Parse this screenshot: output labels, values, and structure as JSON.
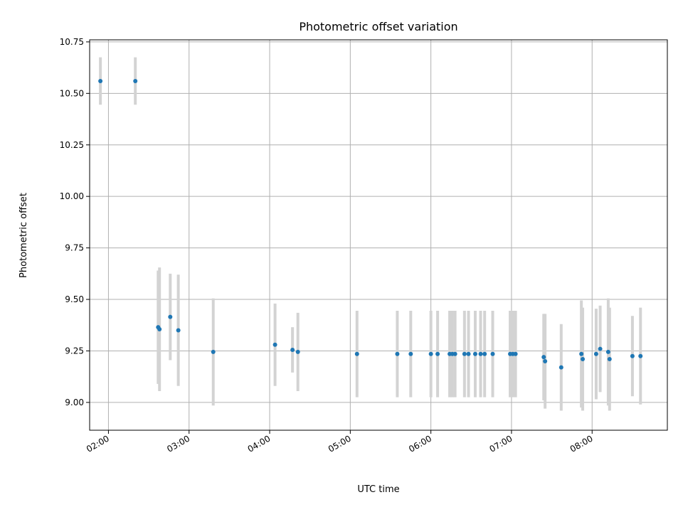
{
  "chart_data": {
    "type": "scatter",
    "title": "Photometric offset variation",
    "xlabel": "UTC time",
    "ylabel": "Photometric offset",
    "x_is_time": true,
    "xlim": [
      "01:46",
      "08:56"
    ],
    "ylim": [
      8.865,
      10.76
    ],
    "x_ticks": [
      "02:00",
      "03:00",
      "04:00",
      "05:00",
      "06:00",
      "07:00",
      "08:00"
    ],
    "y_ticks": [
      9.0,
      9.25,
      9.5,
      9.75,
      10.0,
      10.25,
      10.5,
      10.75
    ],
    "y_tick_labels": [
      "9.00",
      "9.25",
      "9.50",
      "9.75",
      "10.00",
      "10.25",
      "10.50",
      "10.75"
    ],
    "grid": true,
    "errorbar_color": "#d3d3d3",
    "point_color": "#1f77b4",
    "points": [
      {
        "x": "01:54",
        "y": 10.56,
        "err": 0.115
      },
      {
        "x": "02:20",
        "y": 10.56,
        "err": 0.115
      },
      {
        "x": "02:37",
        "y": 9.365,
        "err": 0.275
      },
      {
        "x": "02:38",
        "y": 9.355,
        "err": 0.3
      },
      {
        "x": "02:46",
        "y": 9.415,
        "err": 0.21
      },
      {
        "x": "02:52",
        "y": 9.35,
        "err": 0.27
      },
      {
        "x": "03:18",
        "y": 9.245,
        "err": 0.26
      },
      {
        "x": "04:04",
        "y": 9.28,
        "err": 0.2
      },
      {
        "x": "04:17",
        "y": 9.255,
        "err": 0.11
      },
      {
        "x": "04:21",
        "y": 9.245,
        "err": 0.19
      },
      {
        "x": "05:05",
        "y": 9.235,
        "err": 0.21
      },
      {
        "x": "05:35",
        "y": 9.235,
        "err": 0.21
      },
      {
        "x": "05:45",
        "y": 9.235,
        "err": 0.21
      },
      {
        "x": "06:00",
        "y": 9.235,
        "err": 0.21
      },
      {
        "x": "06:05",
        "y": 9.235,
        "err": 0.21
      },
      {
        "x": "06:14",
        "y": 9.235,
        "err": 0.21
      },
      {
        "x": "06:16",
        "y": 9.235,
        "err": 0.21
      },
      {
        "x": "06:18",
        "y": 9.235,
        "err": 0.21
      },
      {
        "x": "06:25",
        "y": 9.235,
        "err": 0.21
      },
      {
        "x": "06:28",
        "y": 9.235,
        "err": 0.21
      },
      {
        "x": "06:33",
        "y": 9.235,
        "err": 0.21
      },
      {
        "x": "06:37",
        "y": 9.235,
        "err": 0.21
      },
      {
        "x": "06:40",
        "y": 9.235,
        "err": 0.21
      },
      {
        "x": "06:46",
        "y": 9.235,
        "err": 0.21
      },
      {
        "x": "06:59",
        "y": 9.235,
        "err": 0.21
      },
      {
        "x": "07:01",
        "y": 9.235,
        "err": 0.21
      },
      {
        "x": "07:03",
        "y": 9.235,
        "err": 0.21
      },
      {
        "x": "07:24",
        "y": 9.22,
        "err": 0.21
      },
      {
        "x": "07:25",
        "y": 9.2,
        "err": 0.23
      },
      {
        "x": "07:37",
        "y": 9.17,
        "err": 0.21
      },
      {
        "x": "07:52",
        "y": 9.235,
        "err": 0.26
      },
      {
        "x": "07:53",
        "y": 9.21,
        "err": 0.25
      },
      {
        "x": "08:03",
        "y": 9.235,
        "err": 0.22
      },
      {
        "x": "08:06",
        "y": 9.26,
        "err": 0.21
      },
      {
        "x": "08:12",
        "y": 9.245,
        "err": 0.26
      },
      {
        "x": "08:13",
        "y": 9.21,
        "err": 0.25
      },
      {
        "x": "08:30",
        "y": 9.225,
        "err": 0.195
      },
      {
        "x": "08:36",
        "y": 9.225,
        "err": 0.235
      }
    ]
  }
}
